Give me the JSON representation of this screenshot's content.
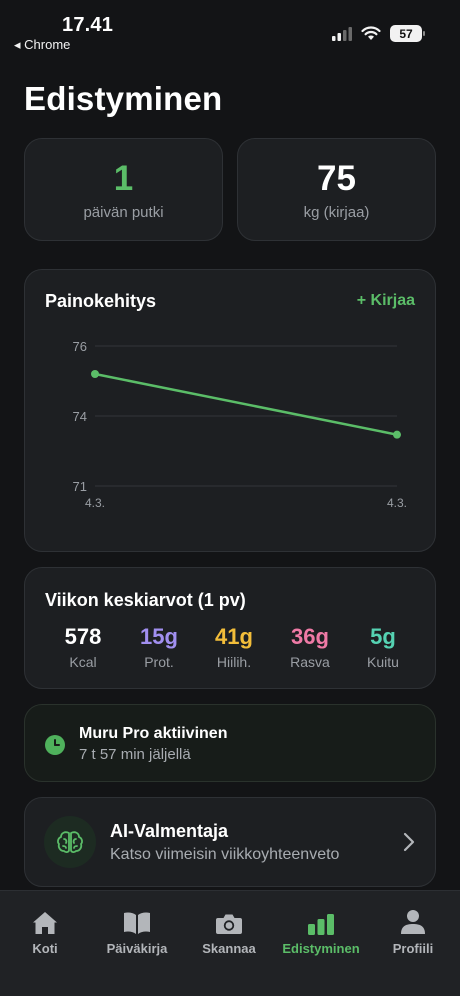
{
  "status_bar": {
    "time": "17.41",
    "back_app": "◂ Chrome",
    "battery": "57"
  },
  "page_title": "Edistyminen",
  "stats": {
    "streak": {
      "value": "1",
      "label": "päivän putki",
      "color": "#5bbd68"
    },
    "weight": {
      "value": "75",
      "label": "kg (kirjaa)"
    }
  },
  "weight_card": {
    "title": "Painokehitys",
    "log_button": "+ Kirjaa"
  },
  "chart_data": {
    "type": "line",
    "x": [
      "4.3.",
      "4.3."
    ],
    "series": [
      {
        "values": [
          75.2,
          73.2
        ],
        "color": "#5bbd68"
      }
    ],
    "y_ticks": [
      "76",
      "74",
      "71"
    ],
    "ylim": [
      71,
      76
    ],
    "grid": true
  },
  "weekly_avg": {
    "title": "Viikon keskiarvot (1 pv)",
    "items": [
      {
        "value": "578",
        "label": "Kcal",
        "color": "#ffffff"
      },
      {
        "value": "15g",
        "label": "Prot.",
        "color": "#a18ff0"
      },
      {
        "value": "41g",
        "label": "Hiilih.",
        "color": "#f2bd3a"
      },
      {
        "value": "36g",
        "label": "Rasva",
        "color": "#ef7aa6"
      },
      {
        "value": "5g",
        "label": "Kuitu",
        "color": "#55d2b2"
      }
    ]
  },
  "pro": {
    "title": "Muru Pro aktiivinen",
    "subtitle": "7 t 57 min jäljellä",
    "icon": "clock-icon"
  },
  "coach": {
    "title": "AI-Valmentaja",
    "subtitle": "Katso viimeisin viikkoyhteenveto",
    "icon": "brain-icon"
  },
  "tabs": [
    {
      "label": "Koti",
      "icon": "home-icon",
      "active": false
    },
    {
      "label": "Päiväkirja",
      "icon": "book-icon",
      "active": false
    },
    {
      "label": "Skannaa",
      "icon": "camera-icon",
      "active": false
    },
    {
      "label": "Edistyminen",
      "icon": "bar-chart-icon",
      "active": true
    },
    {
      "label": "Profiili",
      "icon": "person-icon",
      "active": false
    }
  ]
}
